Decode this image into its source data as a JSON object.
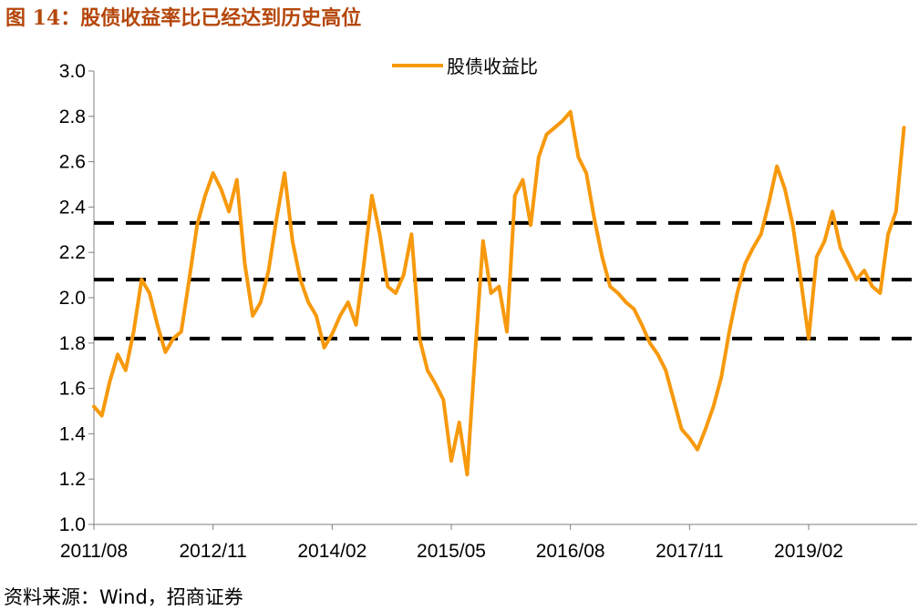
{
  "figure_title": "图 14：股债收益率比已经达到历史高位",
  "source_note": "资料来源：Wind，招商证券",
  "colors": {
    "series": "#f7990c",
    "title": "#b5470b",
    "reference_line": "#000000"
  },
  "chart_data": {
    "type": "line",
    "legend_position": "top-center",
    "grid": false,
    "ylim": [
      1.0,
      3.0
    ],
    "y_ticks": [
      "1.0",
      "1.2",
      "1.4",
      "1.6",
      "1.8",
      "2.0",
      "2.2",
      "2.4",
      "2.6",
      "2.8",
      "3.0"
    ],
    "x_ticks": [
      "2011/08",
      "2012/11",
      "2014/02",
      "2015/05",
      "2016/08",
      "2017/11",
      "2019/02"
    ],
    "reference_lines": [
      2.33,
      2.08,
      1.82
    ],
    "series": [
      {
        "name": "股债收益比",
        "values": [
          [
            "2011/08",
            1.52
          ],
          [
            "2011/09",
            1.48
          ],
          [
            "2011/10",
            1.63
          ],
          [
            "2011/11",
            1.75
          ],
          [
            "2011/12",
            1.68
          ],
          [
            "2012/01",
            1.85
          ],
          [
            "2012/02",
            2.08
          ],
          [
            "2012/03",
            2.02
          ],
          [
            "2012/04",
            1.88
          ],
          [
            "2012/05",
            1.76
          ],
          [
            "2012/06",
            1.82
          ],
          [
            "2012/07",
            1.85
          ],
          [
            "2012/08",
            2.08
          ],
          [
            "2012/09",
            2.32
          ],
          [
            "2012/10",
            2.45
          ],
          [
            "2012/11",
            2.55
          ],
          [
            "2012/12",
            2.48
          ],
          [
            "2013/01",
            2.38
          ],
          [
            "2013/02",
            2.52
          ],
          [
            "2013/03",
            2.15
          ],
          [
            "2013/04",
            1.92
          ],
          [
            "2013/05",
            1.98
          ],
          [
            "2013/06",
            2.12
          ],
          [
            "2013/07",
            2.35
          ],
          [
            "2013/08",
            2.55
          ],
          [
            "2013/09",
            2.25
          ],
          [
            "2013/10",
            2.08
          ],
          [
            "2013/11",
            1.98
          ],
          [
            "2013/12",
            1.92
          ],
          [
            "2014/01",
            1.78
          ],
          [
            "2014/02",
            1.84
          ],
          [
            "2014/03",
            1.92
          ],
          [
            "2014/04",
            1.98
          ],
          [
            "2014/05",
            1.88
          ],
          [
            "2014/06",
            2.15
          ],
          [
            "2014/07",
            2.45
          ],
          [
            "2014/08",
            2.28
          ],
          [
            "2014/09",
            2.05
          ],
          [
            "2014/10",
            2.02
          ],
          [
            "2014/11",
            2.1
          ],
          [
            "2014/12",
            2.28
          ],
          [
            "2015/01",
            1.82
          ],
          [
            "2015/02",
            1.68
          ],
          [
            "2015/03",
            1.62
          ],
          [
            "2015/04",
            1.55
          ],
          [
            "2015/05",
            1.28
          ],
          [
            "2015/06",
            1.45
          ],
          [
            "2015/07",
            1.22
          ],
          [
            "2015/08",
            1.75
          ],
          [
            "2015/09",
            2.25
          ],
          [
            "2015/10",
            2.02
          ],
          [
            "2015/11",
            2.05
          ],
          [
            "2015/12",
            1.85
          ],
          [
            "2016/01",
            2.45
          ],
          [
            "2016/02",
            2.52
          ],
          [
            "2016/03",
            2.32
          ],
          [
            "2016/04",
            2.62
          ],
          [
            "2016/05",
            2.72
          ],
          [
            "2016/06",
            2.75
          ],
          [
            "2016/07",
            2.78
          ],
          [
            "2016/08",
            2.82
          ],
          [
            "2016/09",
            2.62
          ],
          [
            "2016/10",
            2.55
          ],
          [
            "2016/11",
            2.35
          ],
          [
            "2016/12",
            2.18
          ],
          [
            "2017/01",
            2.05
          ],
          [
            "2017/02",
            2.02
          ],
          [
            "2017/03",
            1.98
          ],
          [
            "2017/04",
            1.95
          ],
          [
            "2017/05",
            1.88
          ],
          [
            "2017/06",
            1.8
          ],
          [
            "2017/07",
            1.75
          ],
          [
            "2017/08",
            1.68
          ],
          [
            "2017/09",
            1.55
          ],
          [
            "2017/10",
            1.42
          ],
          [
            "2017/11",
            1.38
          ],
          [
            "2017/12",
            1.33
          ],
          [
            "2018/01",
            1.42
          ],
          [
            "2018/02",
            1.52
          ],
          [
            "2018/03",
            1.65
          ],
          [
            "2018/04",
            1.85
          ],
          [
            "2018/05",
            2.02
          ],
          [
            "2018/06",
            2.15
          ],
          [
            "2018/07",
            2.22
          ],
          [
            "2018/08",
            2.28
          ],
          [
            "2018/09",
            2.42
          ],
          [
            "2018/10",
            2.58
          ],
          [
            "2018/11",
            2.48
          ],
          [
            "2018/12",
            2.32
          ],
          [
            "2019/01",
            2.08
          ],
          [
            "2019/02",
            1.82
          ],
          [
            "2019/03",
            2.18
          ],
          [
            "2019/04",
            2.25
          ],
          [
            "2019/05",
            2.38
          ],
          [
            "2019/06",
            2.22
          ],
          [
            "2019/07",
            2.15
          ],
          [
            "2019/08",
            2.08
          ],
          [
            "2019/09",
            2.12
          ],
          [
            "2019/10",
            2.05
          ],
          [
            "2019/11",
            2.02
          ],
          [
            "2019/12",
            2.28
          ],
          [
            "2020/01",
            2.38
          ],
          [
            "2020/02",
            2.75
          ]
        ]
      }
    ]
  }
}
